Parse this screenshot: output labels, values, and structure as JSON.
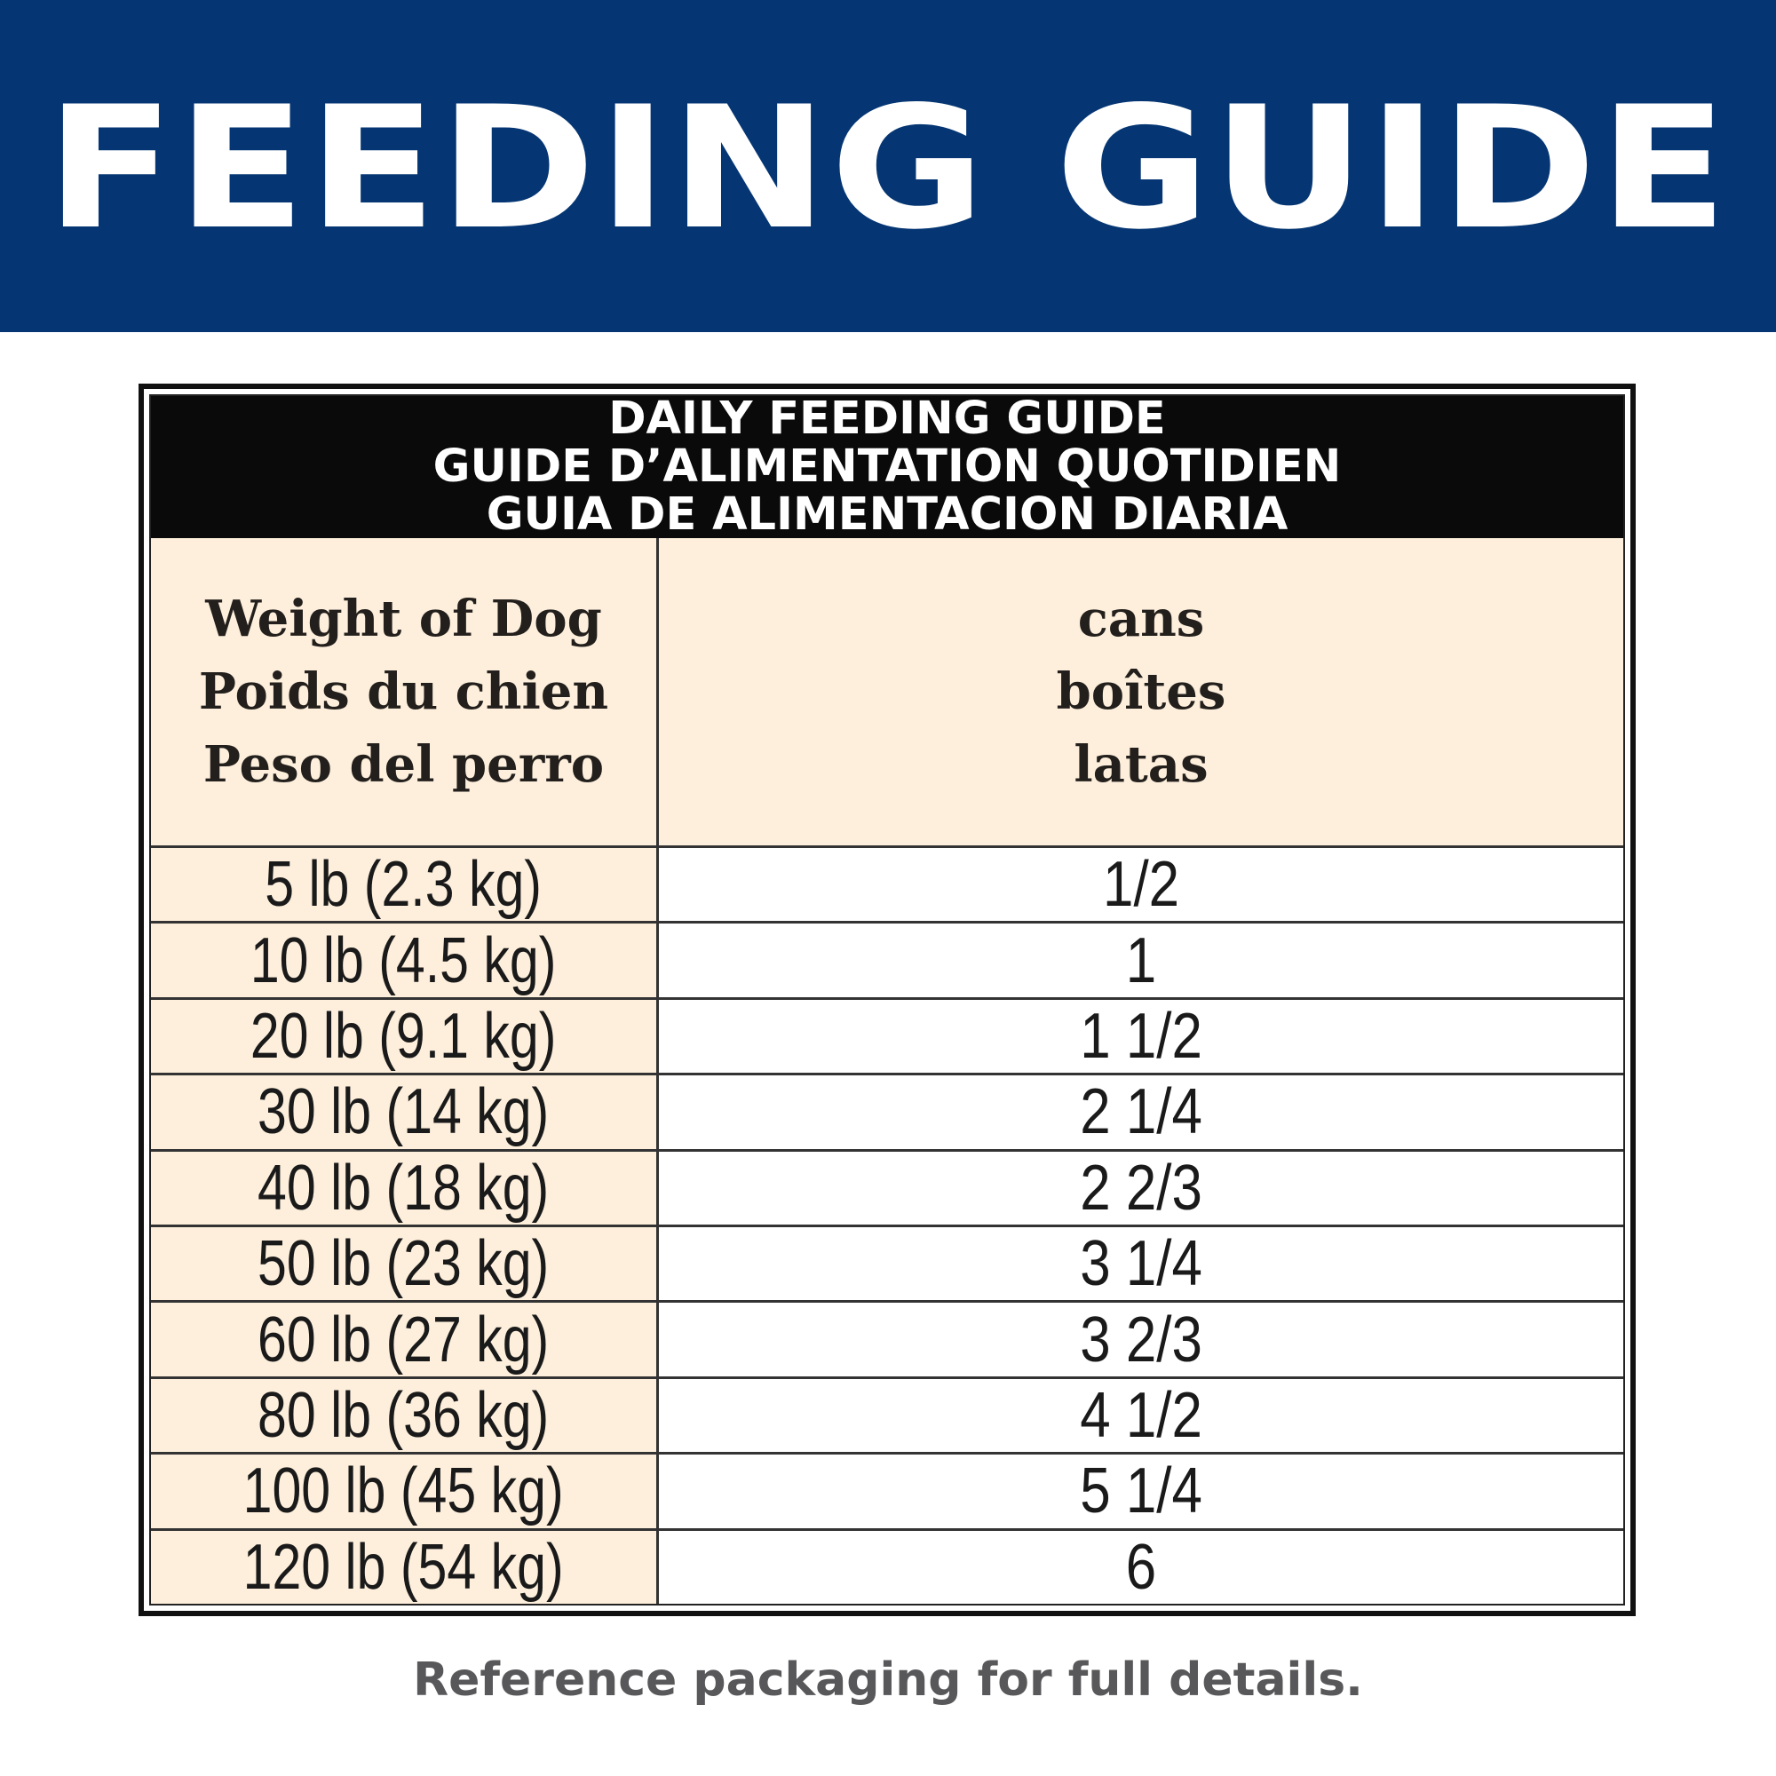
{
  "banner": {
    "title": "FEEDING GUIDE"
  },
  "table": {
    "title_lines": [
      "DAILY FEEDING GUIDE",
      "GUIDE D’ALIMENTATION QUOTIDIEN",
      "GUIA DE ALIMENTACION DIARIA"
    ],
    "weight_header": [
      "Weight of Dog",
      "Poids du chien",
      "Peso del perro"
    ],
    "cans_header": [
      "cans",
      "boîtes",
      "latas"
    ],
    "rows": [
      {
        "weight": "5 lb (2.3 kg)",
        "cans": "1/2"
      },
      {
        "weight": "10 lb (4.5 kg)",
        "cans": "1"
      },
      {
        "weight": "20 lb (9.1 kg)",
        "cans": "1 1/2"
      },
      {
        "weight": "30 lb (14 kg)",
        "cans": "2 1/4"
      },
      {
        "weight": "40 lb (18 kg)",
        "cans": "2 2/3"
      },
      {
        "weight": "50 lb (23 kg)",
        "cans": "3 1/4"
      },
      {
        "weight": "60 lb (27 kg)",
        "cans": "3 2/3"
      },
      {
        "weight": "80 lb (36 kg)",
        "cans": "4 1/2"
      },
      {
        "weight": "100 lb (45 kg)",
        "cans": "5 1/4"
      },
      {
        "weight": "120 lb (54 kg)",
        "cans": "6"
      }
    ]
  },
  "footer": {
    "note": "Reference packaging for full details."
  },
  "colors": {
    "banner_blue": "#053673",
    "cream": "#fdefdc",
    "black": "#0a0a0a",
    "footer_gray": "#58585a"
  }
}
